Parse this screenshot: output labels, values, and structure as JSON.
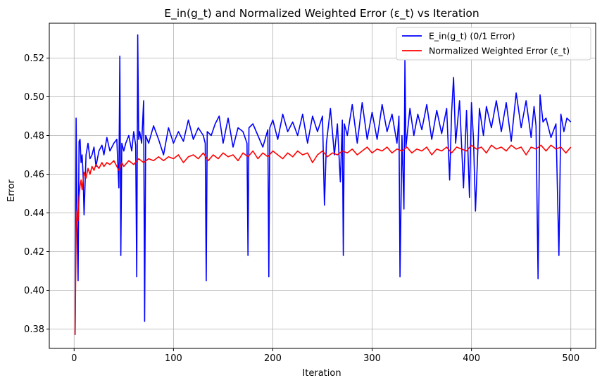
{
  "chart_data": {
    "type": "line",
    "title": "E_in(g_t) and Normalized Weighted Error (ε_t) vs Iteration",
    "xlabel": "Iteration",
    "ylabel": "Error",
    "xlim": [
      -25,
      525
    ],
    "ylim": [
      0.37,
      0.538
    ],
    "xticks": [
      0,
      100,
      200,
      300,
      400,
      500
    ],
    "yticks": [
      0.38,
      0.4,
      0.42,
      0.44,
      0.46,
      0.48,
      0.5,
      0.52
    ],
    "ytick_labels": [
      "0.38",
      "0.40",
      "0.42",
      "0.44",
      "0.46",
      "0.48",
      "0.50",
      "0.52"
    ],
    "grid": true,
    "legend": "top-right",
    "series": [
      {
        "name": "E_in(g_t) (0/1 Error)",
        "color": "#0000ff",
        "x": [
          1,
          2,
          3,
          4,
          5,
          6,
          7,
          8,
          9,
          10,
          12,
          14,
          16,
          18,
          20,
          22,
          25,
          28,
          30,
          33,
          36,
          40,
          43,
          45,
          46,
          47,
          48,
          50,
          52,
          55,
          58,
          60,
          62,
          63,
          64,
          65,
          66,
          68,
          70,
          71,
          72,
          75,
          80,
          85,
          90,
          95,
          100,
          105,
          110,
          115,
          120,
          125,
          130,
          132,
          133,
          134,
          138,
          142,
          146,
          150,
          155,
          160,
          165,
          170,
          174,
          175,
          176,
          180,
          185,
          190,
          195,
          196,
          197,
          200,
          205,
          210,
          215,
          220,
          225,
          230,
          235,
          240,
          245,
          250,
          252,
          254,
          258,
          262,
          265,
          268,
          270,
          271,
          272,
          275,
          280,
          285,
          290,
          295,
          300,
          305,
          310,
          315,
          320,
          325,
          327,
          328,
          330,
          332,
          333,
          334,
          338,
          342,
          346,
          350,
          355,
          360,
          365,
          370,
          375,
          378,
          380,
          382,
          384,
          388,
          392,
          395,
          398,
          400,
          402,
          404,
          408,
          412,
          415,
          420,
          425,
          430,
          435,
          440,
          445,
          450,
          455,
          460,
          463,
          465,
          467,
          469,
          472,
          475,
          480,
          485,
          488,
          490,
          493,
          496,
          500
        ],
        "y": [
          0.377,
          0.489,
          0.433,
          0.405,
          0.477,
          0.478,
          0.466,
          0.47,
          0.46,
          0.439,
          0.47,
          0.476,
          0.468,
          0.47,
          0.474,
          0.464,
          0.472,
          0.475,
          0.47,
          0.479,
          0.472,
          0.476,
          0.478,
          0.453,
          0.521,
          0.418,
          0.476,
          0.472,
          0.476,
          0.48,
          0.472,
          0.482,
          0.475,
          0.407,
          0.532,
          0.478,
          0.482,
          0.476,
          0.498,
          0.384,
          0.48,
          0.476,
          0.485,
          0.478,
          0.47,
          0.484,
          0.476,
          0.482,
          0.477,
          0.488,
          0.478,
          0.484,
          0.48,
          0.476,
          0.405,
          0.482,
          0.48,
          0.486,
          0.49,
          0.476,
          0.489,
          0.474,
          0.484,
          0.482,
          0.476,
          0.418,
          0.484,
          0.486,
          0.48,
          0.474,
          0.483,
          0.407,
          0.484,
          0.488,
          0.478,
          0.491,
          0.482,
          0.487,
          0.48,
          0.491,
          0.476,
          0.49,
          0.482,
          0.49,
          0.444,
          0.476,
          0.494,
          0.47,
          0.486,
          0.456,
          0.488,
          0.418,
          0.486,
          0.48,
          0.496,
          0.476,
          0.497,
          0.478,
          0.492,
          0.478,
          0.496,
          0.482,
          0.491,
          0.476,
          0.49,
          0.407,
          0.48,
          0.442,
          0.519,
          0.474,
          0.494,
          0.48,
          0.491,
          0.483,
          0.496,
          0.478,
          0.493,
          0.481,
          0.494,
          0.457,
          0.492,
          0.51,
          0.476,
          0.498,
          0.453,
          0.493,
          0.448,
          0.497,
          0.478,
          0.441,
          0.494,
          0.48,
          0.495,
          0.484,
          0.498,
          0.482,
          0.497,
          0.477,
          0.502,
          0.484,
          0.498,
          0.479,
          0.495,
          0.485,
          0.406,
          0.501,
          0.487,
          0.489,
          0.479,
          0.486,
          0.418,
          0.491,
          0.482,
          0.489,
          0.487
        ]
      },
      {
        "name": "Normalized Weighted Error (ε_t)",
        "color": "#ff0000",
        "x": [
          1,
          2,
          3,
          4,
          5,
          6,
          7,
          8,
          10,
          12,
          14,
          16,
          18,
          20,
          22,
          25,
          28,
          30,
          33,
          36,
          40,
          45,
          48,
          50,
          55,
          60,
          65,
          70,
          75,
          80,
          85,
          90,
          95,
          100,
          105,
          110,
          115,
          120,
          125,
          130,
          135,
          140,
          145,
          150,
          155,
          160,
          165,
          170,
          175,
          180,
          185,
          190,
          195,
          200,
          205,
          210,
          215,
          220,
          225,
          230,
          235,
          240,
          245,
          250,
          255,
          260,
          265,
          270,
          275,
          280,
          285,
          290,
          295,
          300,
          305,
          310,
          315,
          320,
          325,
          330,
          335,
          340,
          345,
          350,
          355,
          360,
          365,
          370,
          375,
          380,
          385,
          390,
          395,
          400,
          405,
          410,
          415,
          420,
          425,
          430,
          435,
          440,
          445,
          450,
          455,
          460,
          465,
          470,
          475,
          480,
          485,
          490,
          495,
          500
        ],
        "y": [
          0.377,
          0.43,
          0.441,
          0.436,
          0.448,
          0.454,
          0.457,
          0.452,
          0.461,
          0.458,
          0.463,
          0.46,
          0.464,
          0.462,
          0.465,
          0.463,
          0.466,
          0.464,
          0.466,
          0.465,
          0.467,
          0.462,
          0.466,
          0.464,
          0.467,
          0.465,
          0.468,
          0.466,
          0.468,
          0.467,
          0.469,
          0.467,
          0.469,
          0.468,
          0.47,
          0.466,
          0.469,
          0.47,
          0.468,
          0.471,
          0.467,
          0.47,
          0.468,
          0.471,
          0.469,
          0.47,
          0.467,
          0.471,
          0.469,
          0.472,
          0.468,
          0.471,
          0.469,
          0.472,
          0.47,
          0.468,
          0.471,
          0.469,
          0.472,
          0.47,
          0.471,
          0.466,
          0.47,
          0.472,
          0.469,
          0.471,
          0.47,
          0.472,
          0.471,
          0.473,
          0.47,
          0.472,
          0.474,
          0.471,
          0.473,
          0.472,
          0.474,
          0.471,
          0.473,
          0.472,
          0.474,
          0.471,
          0.473,
          0.472,
          0.474,
          0.47,
          0.473,
          0.472,
          0.474,
          0.471,
          0.474,
          0.473,
          0.472,
          0.475,
          0.473,
          0.474,
          0.471,
          0.475,
          0.473,
          0.474,
          0.472,
          0.475,
          0.473,
          0.474,
          0.47,
          0.474,
          0.473,
          0.475,
          0.472,
          0.475,
          0.473,
          0.474,
          0.471,
          0.474
        ]
      }
    ]
  }
}
